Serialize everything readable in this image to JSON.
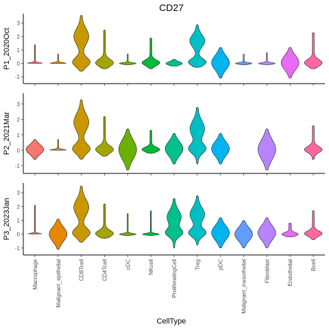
{
  "chart_data": {
    "type": "violin",
    "title": "CD27",
    "xlabel": "CellType",
    "categories": [
      "Macrophage",
      "Malignant_epithelial",
      "CD8Tcell",
      "CD4Tcell",
      "cDC",
      "NKcell",
      "ProliferatingCell",
      "Treg",
      "pDC",
      "Malignant_mesothelial",
      "Fibroblast",
      "Endothelial",
      "Bcell"
    ],
    "colors": [
      "#F8766D",
      "#E58700",
      "#C99800",
      "#A3A500",
      "#6BB100",
      "#00BA38",
      "#00C08B",
      "#00BFC4",
      "#00B4F0",
      "#619CFF",
      "#B983FF",
      "#E76BF3",
      "#FF67A4"
    ],
    "yticks": [
      -1,
      0,
      1,
      2,
      3
    ],
    "ylim": [
      -1.5,
      3.7
    ],
    "panels": [
      {
        "ylabel": "P1_2020Oct",
        "violins": [
          {
            "cat": "Macrophage",
            "min": 0.0,
            "max": 1.4,
            "kind": "spike"
          },
          {
            "cat": "Malignant_epithelial",
            "min": 0.0,
            "max": 0.7,
            "kind": "spike"
          },
          {
            "cat": "CD8Tcell",
            "min": -0.6,
            "max": 3.6,
            "kind": "bimodal"
          },
          {
            "cat": "CD4Tcell",
            "min": -0.4,
            "max": 2.5,
            "kind": "blob"
          },
          {
            "cat": "cDC",
            "min": -0.1,
            "max": 0.7,
            "kind": "spike"
          },
          {
            "cat": "NKcell",
            "min": -0.4,
            "max": 1.9,
            "kind": "blob"
          },
          {
            "cat": "ProliferatingCell",
            "min": -0.2,
            "max": 0.3,
            "kind": "flat"
          },
          {
            "cat": "Treg",
            "min": -0.3,
            "max": 2.9,
            "kind": "bimodal"
          },
          {
            "cat": "pDC",
            "min": -1.1,
            "max": 1.2,
            "kind": "round"
          },
          {
            "cat": "Malignant_mesothelial",
            "min": -0.1,
            "max": 0.7,
            "kind": "spike"
          },
          {
            "cat": "Fibroblast",
            "min": -0.1,
            "max": 0.8,
            "kind": "spike"
          },
          {
            "cat": "Endothelial",
            "min": -1.1,
            "max": 1.2,
            "kind": "round"
          },
          {
            "cat": "Bcell",
            "min": -0.4,
            "max": 2.3,
            "kind": "blob"
          }
        ]
      },
      {
        "ylabel": "P2_2021Mar",
        "violins": [
          {
            "cat": "Macrophage",
            "min": -0.6,
            "max": 0.7,
            "kind": "round"
          },
          {
            "cat": "Malignant_epithelial",
            "min": 0.0,
            "max": 0.7,
            "kind": "spike"
          },
          {
            "cat": "CD8Tcell",
            "min": -0.6,
            "max": 3.3,
            "kind": "bimodal"
          },
          {
            "cat": "CD4Tcell",
            "min": -0.4,
            "max": 2.2,
            "kind": "blob"
          },
          {
            "cat": "cDC",
            "min": -1.3,
            "max": 1.4,
            "kind": "round"
          },
          {
            "cat": "NKcell",
            "min": -0.2,
            "max": 1.3,
            "kind": "blob"
          },
          {
            "cat": "ProliferatingCell",
            "min": -0.9,
            "max": 1.1,
            "kind": "round"
          },
          {
            "cat": "Treg",
            "min": -0.9,
            "max": 2.8,
            "kind": "bimodal"
          },
          {
            "cat": "pDC",
            "min": -0.9,
            "max": 1.1,
            "kind": "round"
          },
          {
            "cat": "Fibroblast",
            "min": -1.3,
            "max": 1.4,
            "kind": "round"
          },
          {
            "cat": "Bcell",
            "min": -0.6,
            "max": 1.6,
            "kind": "blob"
          }
        ]
      },
      {
        "ylabel": "P3_2023Jan",
        "violins": [
          {
            "cat": "Macrophage",
            "min": 0.0,
            "max": 2.1,
            "kind": "spike"
          },
          {
            "cat": "Malignant_epithelial",
            "min": -1.1,
            "max": 1.1,
            "kind": "round"
          },
          {
            "cat": "CD8Tcell",
            "min": -0.6,
            "max": 3.5,
            "kind": "bimodal"
          },
          {
            "cat": "CD4Tcell",
            "min": -0.3,
            "max": 2.2,
            "kind": "blob"
          },
          {
            "cat": "cDC",
            "min": -0.1,
            "max": 1.5,
            "kind": "spike"
          },
          {
            "cat": "NKcell",
            "min": -0.1,
            "max": 1.7,
            "kind": "spike"
          },
          {
            "cat": "ProliferatingCell",
            "min": -1.0,
            "max": 2.6,
            "kind": "bimodal"
          },
          {
            "cat": "Treg",
            "min": -0.8,
            "max": 2.8,
            "kind": "bimodal"
          },
          {
            "cat": "pDC",
            "min": -1.0,
            "max": 1.2,
            "kind": "round"
          },
          {
            "cat": "Malignant_mesothelial",
            "min": -1.0,
            "max": 1.0,
            "kind": "round"
          },
          {
            "cat": "Fibroblast",
            "min": -1.0,
            "max": 1.2,
            "kind": "round"
          },
          {
            "cat": "Endothelial",
            "min": -0.2,
            "max": 0.8,
            "kind": "flat"
          },
          {
            "cat": "Bcell",
            "min": -0.4,
            "max": 1.7,
            "kind": "blob"
          }
        ]
      }
    ],
    "legend": "none",
    "grid": false
  }
}
